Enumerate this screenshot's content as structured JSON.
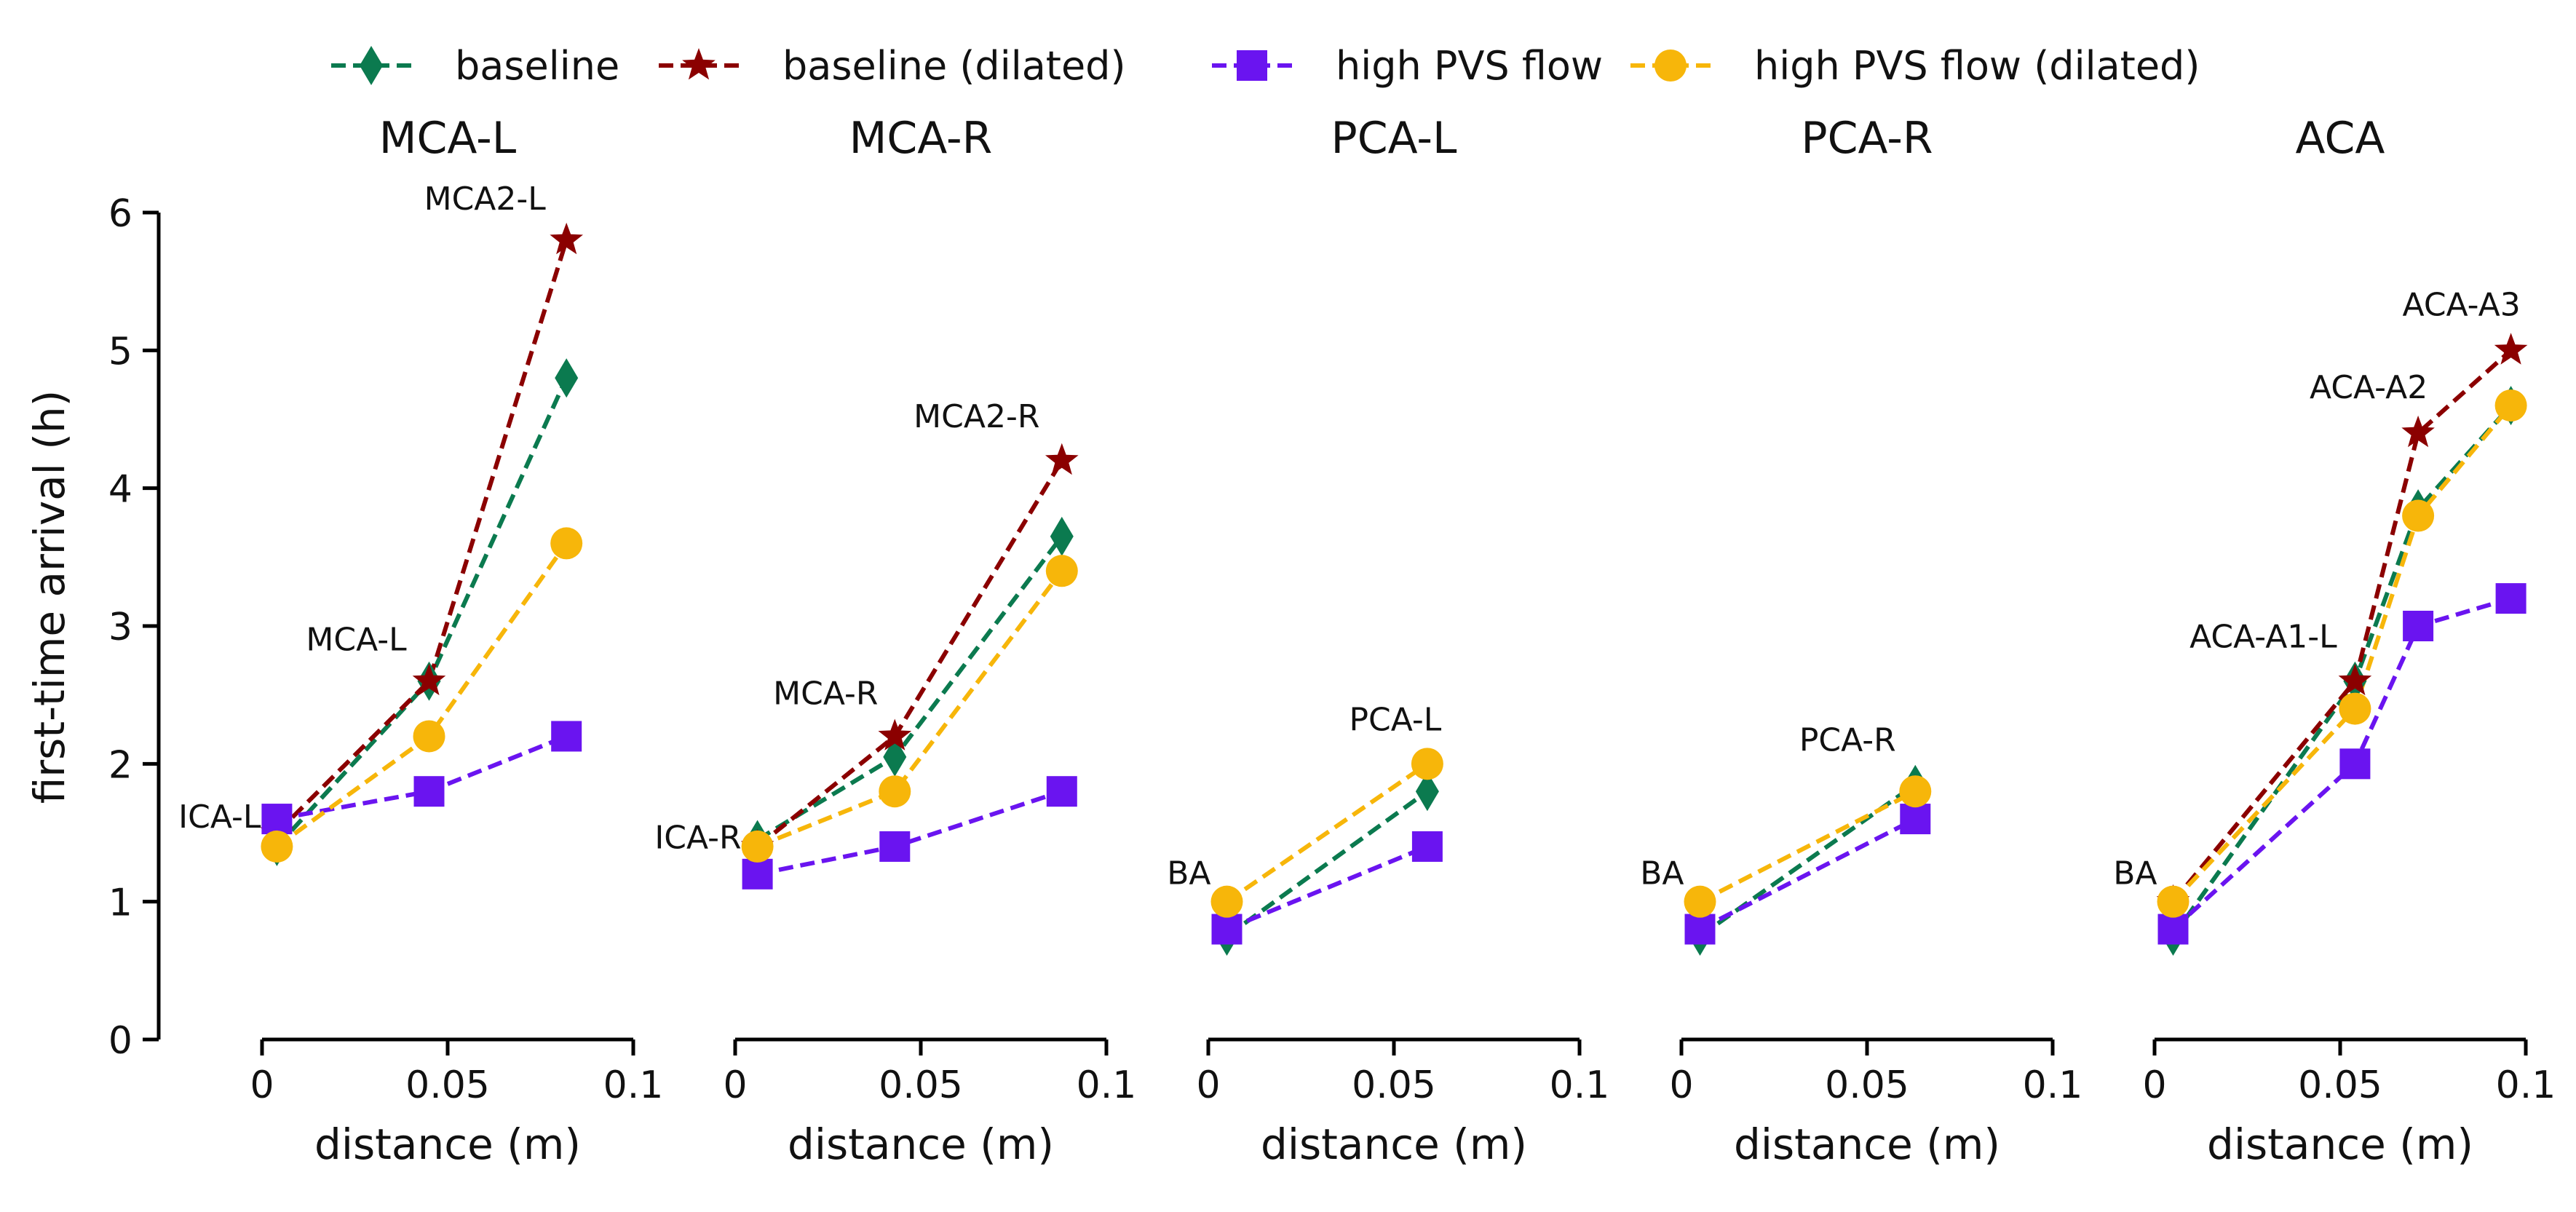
{
  "chart_data": {
    "type": "line",
    "ylabel": "first-time arrival (h)",
    "xlabel": "distance (m)",
    "ylim": [
      0,
      6
    ],
    "yticks": [
      "0",
      "1",
      "2",
      "3",
      "4",
      "5",
      "6"
    ],
    "xlim": [
      0,
      0.1
    ],
    "xticks": [
      "0",
      "0.05",
      "0.1"
    ],
    "legend": {
      "position": "top",
      "entries": [
        "baseline",
        "baseline (dilated)",
        "high PVS flow",
        "high PVS flow (dilated)"
      ]
    },
    "series_styles": [
      {
        "name": "baseline",
        "color": "#0b7a4f",
        "marker": "diamond"
      },
      {
        "name": "baseline (dilated)",
        "color": "#8b0000",
        "marker": "star"
      },
      {
        "name": "high PVS flow",
        "color": "#6a14f0",
        "marker": "square"
      },
      {
        "name": "high PVS flow (dilated)",
        "color": "#f7b60a",
        "marker": "circle"
      }
    ],
    "panels": [
      {
        "title": "MCA-L",
        "x": [
          0.004,
          0.045,
          0.082
        ],
        "point_labels": [
          "ICA-L",
          "MCA-L",
          "MCA2-L"
        ],
        "series": [
          {
            "name": "baseline",
            "values": [
              1.4,
              2.6,
              4.8
            ]
          },
          {
            "name": "baseline (dilated)",
            "values": [
              1.5,
              2.6,
              5.8
            ]
          },
          {
            "name": "high PVS flow",
            "values": [
              1.6,
              1.8,
              2.2
            ]
          },
          {
            "name": "high PVS flow (dilated)",
            "values": [
              1.4,
              2.2,
              3.6
            ]
          }
        ]
      },
      {
        "title": "MCA-R",
        "x": [
          0.006,
          0.043,
          0.088
        ],
        "point_labels": [
          "ICA-R",
          "MCA-R",
          "MCA2-R"
        ],
        "series": [
          {
            "name": "baseline",
            "values": [
              1.45,
              2.05,
              3.65
            ]
          },
          {
            "name": "baseline (dilated)",
            "values": [
              1.4,
              2.2,
              4.2
            ]
          },
          {
            "name": "high PVS flow",
            "values": [
              1.2,
              1.4,
              1.8
            ]
          },
          {
            "name": "high PVS flow (dilated)",
            "values": [
              1.4,
              1.8,
              3.4
            ]
          }
        ]
      },
      {
        "title": "PCA-L",
        "x": [
          0.005,
          0.059
        ],
        "point_labels": [
          "BA",
          "PCA-L"
        ],
        "series": [
          {
            "name": "baseline",
            "values": [
              0.75,
              1.8
            ]
          },
          {
            "name": "baseline (dilated)",
            "values": []
          },
          {
            "name": "high PVS flow",
            "values": [
              0.8,
              1.4
            ]
          },
          {
            "name": "high PVS flow (dilated)",
            "values": [
              1.0,
              2.0
            ]
          }
        ]
      },
      {
        "title": "PCA-R",
        "x": [
          0.005,
          0.063
        ],
        "point_labels": [
          "BA",
          "PCA-R"
        ],
        "series": [
          {
            "name": "baseline",
            "values": [
              0.75,
              1.85
            ]
          },
          {
            "name": "baseline (dilated)",
            "values": []
          },
          {
            "name": "high PVS flow",
            "values": [
              0.8,
              1.6
            ]
          },
          {
            "name": "high PVS flow (dilated)",
            "values": [
              1.0,
              1.8
            ]
          }
        ]
      },
      {
        "title": "ACA",
        "x": [
          0.005,
          0.054,
          0.071,
          0.096
        ],
        "point_labels": [
          "BA",
          "ACA-A1-L",
          "ACA-A2",
          "ACA-A3"
        ],
        "series": [
          {
            "name": "baseline",
            "values": [
              0.75,
              2.6,
              3.85,
              4.6
            ]
          },
          {
            "name": "baseline (dilated)",
            "values": [
              1.0,
              2.6,
              4.4,
              5.0
            ]
          },
          {
            "name": "high PVS flow",
            "values": [
              0.8,
              2.0,
              3.0,
              3.2
            ]
          },
          {
            "name": "high PVS flow (dilated)",
            "values": [
              1.0,
              2.4,
              3.8,
              4.6
            ]
          }
        ]
      }
    ]
  }
}
